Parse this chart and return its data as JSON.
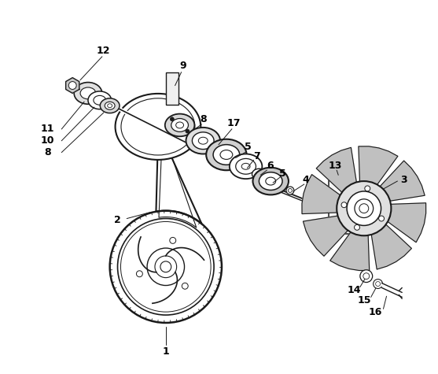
{
  "background_color": "#ffffff",
  "line_color": "#1a1a1a",
  "label_color": "#000000",
  "fig_width": 5.57,
  "fig_height": 4.75,
  "dpi": 100
}
